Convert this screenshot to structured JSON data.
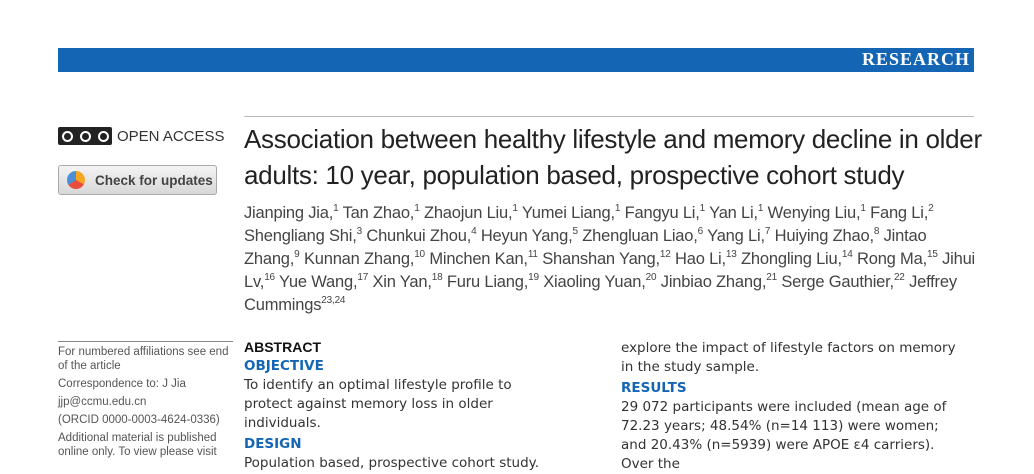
{
  "header": {
    "section": "RESEARCH"
  },
  "sidebar": {
    "open_access": "OPEN ACCESS",
    "check_updates": "Check for updates",
    "notes": [
      "For numbered affiliations see end of the article",
      "Correspondence to: J Jia",
      "jjp@ccmu.edu.cn",
      "(ORCID 0000-0003-4624-0336)",
      "Additional material is published online only. To view please visit"
    ]
  },
  "article": {
    "title": "Association between healthy lifestyle and memory decline in older adults: 10 year, population based, prospective cohort study",
    "authors": [
      {
        "name": "Jianping Jia,",
        "aff": "1"
      },
      {
        "name": "Tan Zhao,",
        "aff": "1"
      },
      {
        "name": "Zhaojun Liu,",
        "aff": "1"
      },
      {
        "name": "Yumei Liang,",
        "aff": "1"
      },
      {
        "name": "Fangyu Li,",
        "aff": "1"
      },
      {
        "name": "Yan Li,",
        "aff": "1"
      },
      {
        "name": "Wenying Liu,",
        "aff": "1"
      },
      {
        "name": "Fang Li,",
        "aff": "2"
      },
      {
        "name": "Shengliang Shi,",
        "aff": "3"
      },
      {
        "name": "Chunkui Zhou,",
        "aff": "4"
      },
      {
        "name": "Heyun Yang,",
        "aff": "5"
      },
      {
        "name": "Zhengluan Liao,",
        "aff": "6"
      },
      {
        "name": "Yang Li,",
        "aff": "7"
      },
      {
        "name": "Huiying Zhao,",
        "aff": "8"
      },
      {
        "name": "Jintao Zhang,",
        "aff": "9"
      },
      {
        "name": "Kunnan Zhang,",
        "aff": "10"
      },
      {
        "name": "Minchen Kan,",
        "aff": "11"
      },
      {
        "name": "Shanshan Yang,",
        "aff": "12"
      },
      {
        "name": "Hao Li,",
        "aff": "13"
      },
      {
        "name": "Zhongling Liu,",
        "aff": "14"
      },
      {
        "name": "Rong Ma,",
        "aff": "15"
      },
      {
        "name": "Jihui Lv,",
        "aff": "16"
      },
      {
        "name": "Yue Wang,",
        "aff": "17"
      },
      {
        "name": "Xin Yan,",
        "aff": "18"
      },
      {
        "name": "Furu Liang,",
        "aff": "19"
      },
      {
        "name": "Xiaoling Yuan,",
        "aff": "20"
      },
      {
        "name": "Jinbiao Zhang,",
        "aff": "21"
      },
      {
        "name": "Serge Gauthier,",
        "aff": "22"
      },
      {
        "name": "Jeffrey Cummings",
        "aff": "23,24"
      }
    ]
  },
  "abstract": {
    "heading": "ABSTRACT",
    "left": [
      {
        "heading": "OBJECTIVE",
        "text": "To identify an optimal lifestyle profile to protect against memory loss in older individuals."
      },
      {
        "heading": "DESIGN",
        "text": "Population based, prospective cohort study."
      }
    ],
    "right": {
      "lead": "explore the impact of lifestyle factors on memory in the study sample.",
      "sections": [
        {
          "heading": "RESULTS",
          "text": "29 072 participants were included (mean age of 72.23 years; 48.54% (n=14 113) were women; and 20.43% (n=5939) were APOE ε4 carriers). Over the"
        }
      ]
    }
  }
}
